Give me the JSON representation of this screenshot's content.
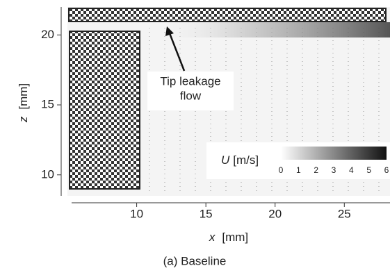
{
  "chart_data": {
    "type": "field",
    "xlabel": {
      "symbol": "x",
      "unit": "[mm]"
    },
    "ylabel": {
      "symbol": "z",
      "unit": "[mm]"
    },
    "xlim": [
      5.3,
      28.3
    ],
    "ylim": [
      8.5,
      22
    ],
    "xticks": [
      10,
      15,
      20,
      25
    ],
    "yticks": [
      10,
      15,
      20
    ],
    "colorbar": {
      "label": {
        "symbol": "U",
        "unit": "[m/s]"
      },
      "lim": [
        0,
        6
      ],
      "ticks": [
        0,
        1,
        2,
        3,
        4,
        5,
        6
      ]
    },
    "annotation": [
      "Tip leakage",
      "flow"
    ],
    "caption": "(a)  Baseline"
  }
}
